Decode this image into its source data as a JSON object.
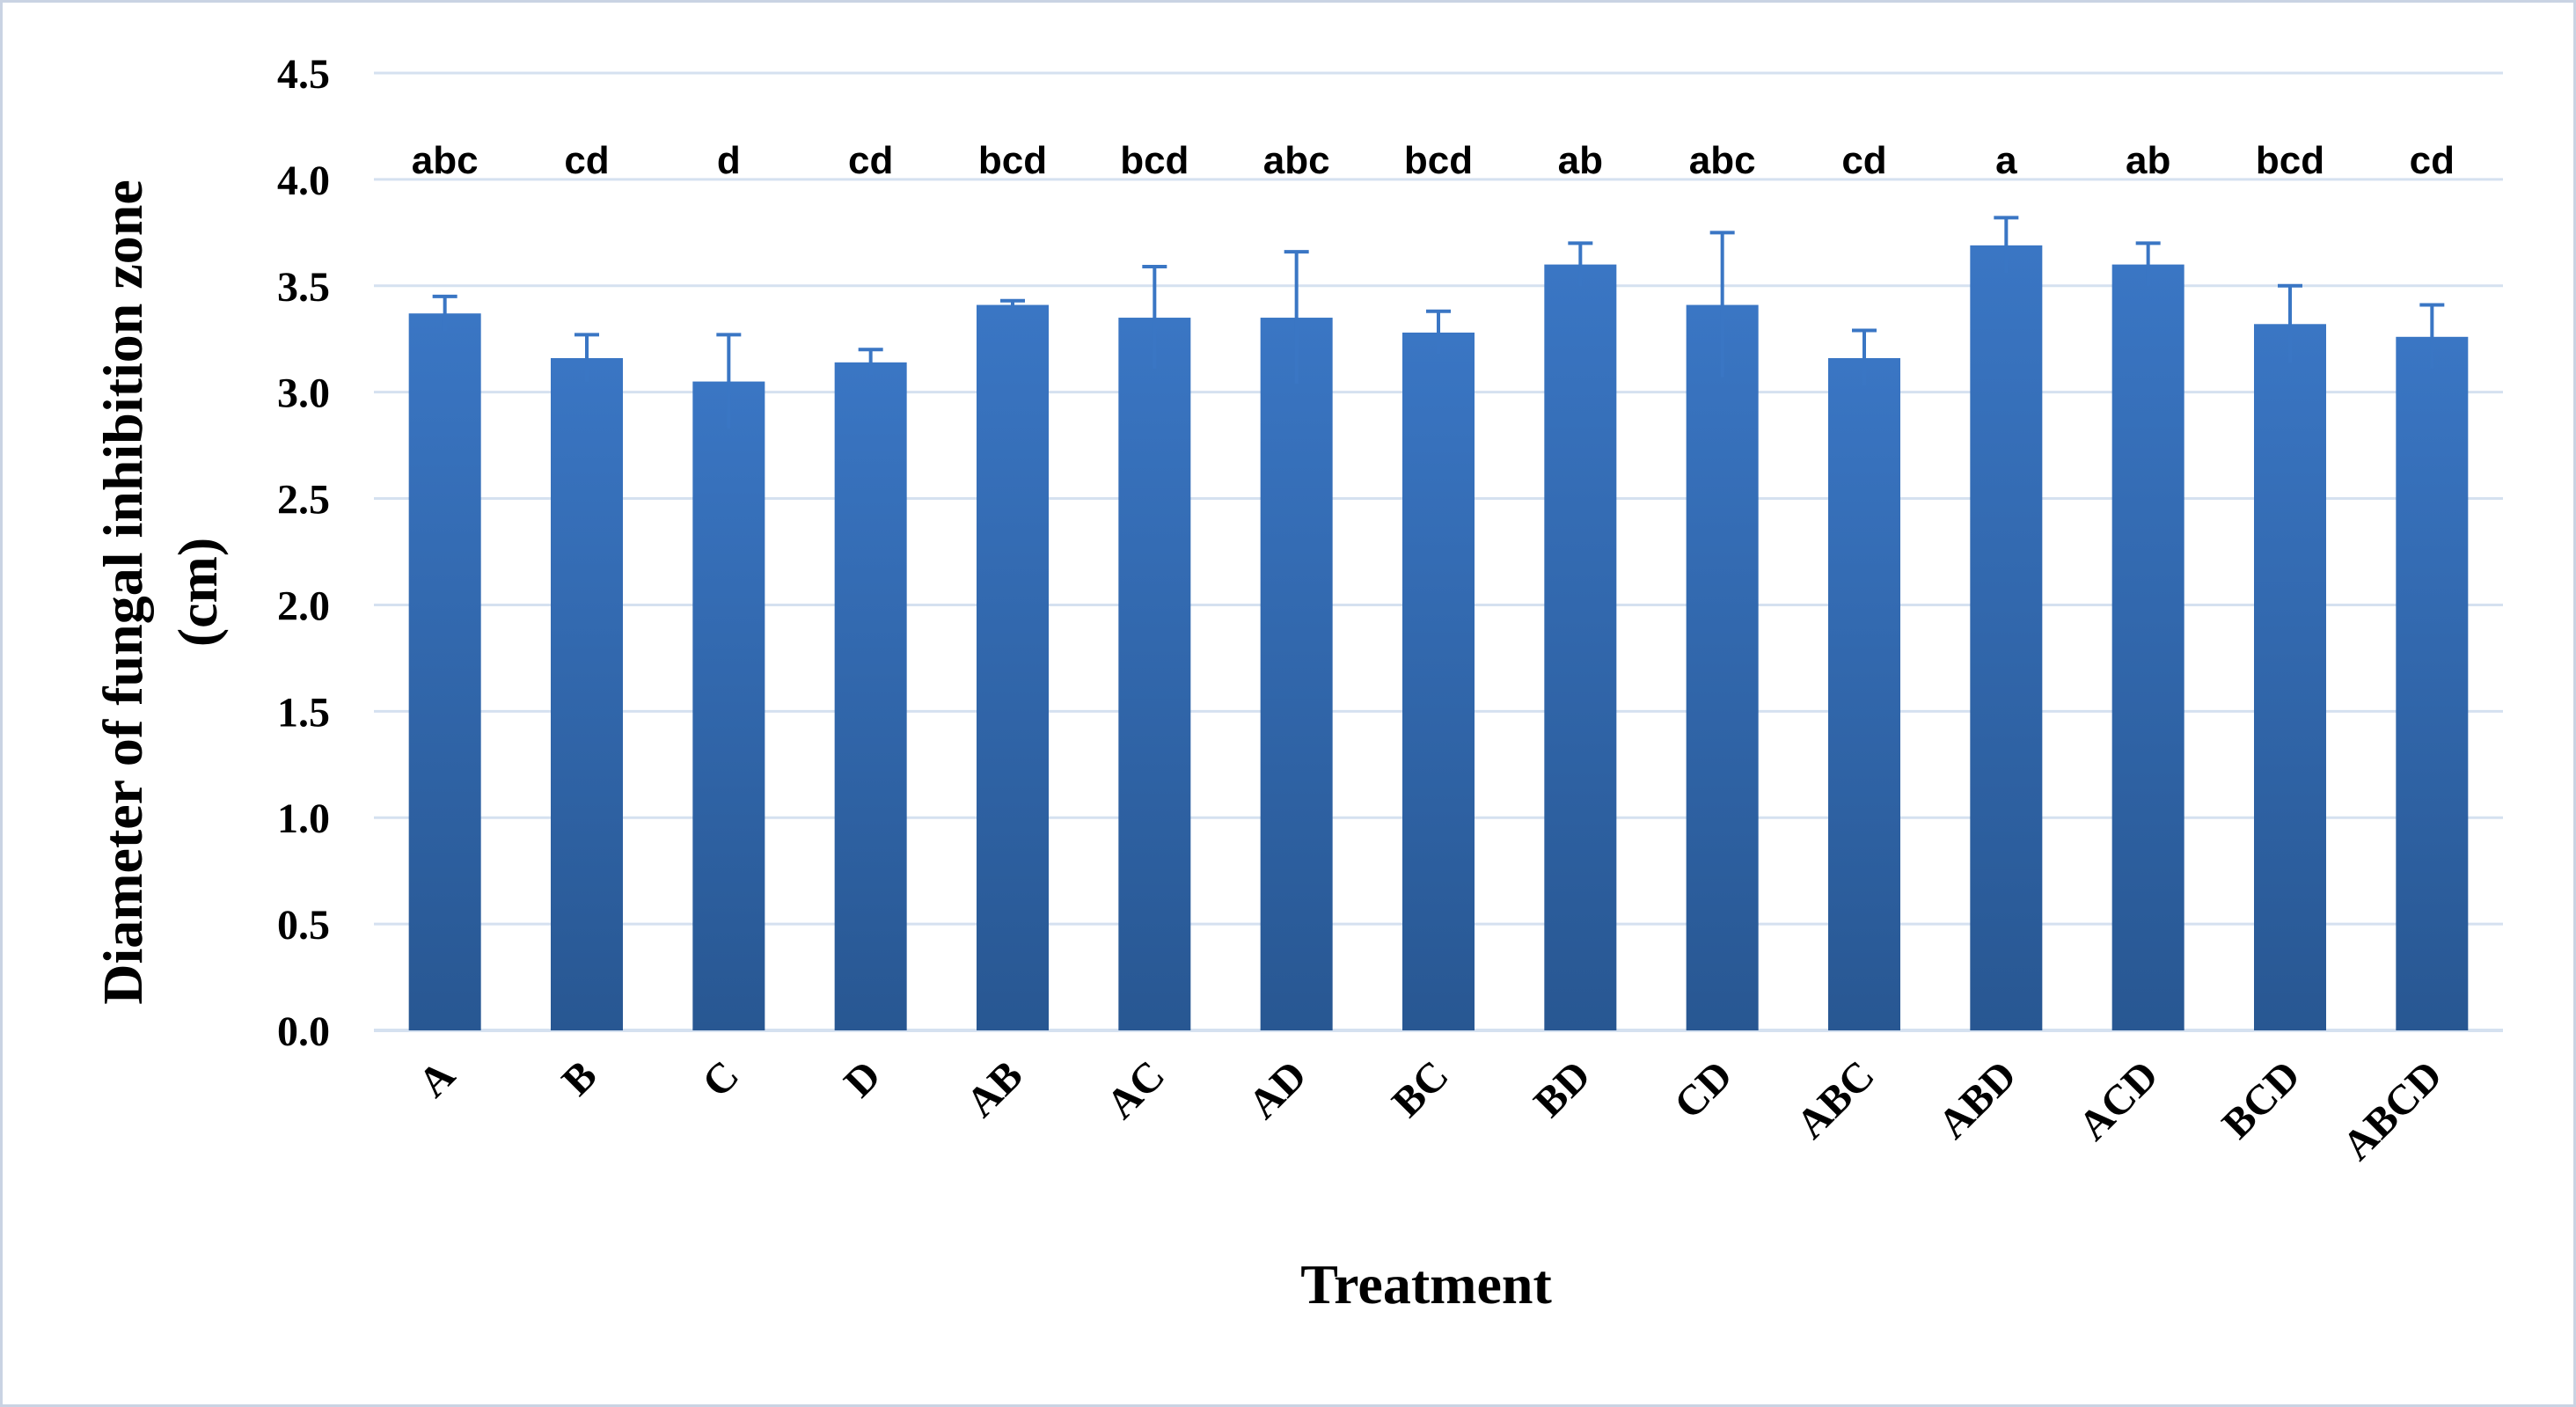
{
  "chart_data": {
    "type": "bar",
    "xlabel": "Treatment",
    "ylabel_line1": "Diameter of fungal inhibition zone",
    "ylabel_line2": "(cm)",
    "ylim": [
      0,
      4.5
    ],
    "y_ticks": [
      "0.0",
      "0.5",
      "1.0",
      "1.5",
      "2.0",
      "2.5",
      "3.0",
      "3.5",
      "4.0",
      "4.5"
    ],
    "grid": true,
    "legend": "none",
    "bar_color_top": "#3a76c4",
    "bar_color_bottom": "#285792",
    "error_color": "#3a76c4",
    "grid_color": "#d5e1f0",
    "categories": [
      "A",
      "B",
      "C",
      "D",
      "AB",
      "AC",
      "AD",
      "BC",
      "BD",
      "CD",
      "ABC",
      "ABD",
      "ACD",
      "BCD",
      "ABCD"
    ],
    "values": [
      3.37,
      3.16,
      3.05,
      3.14,
      3.41,
      3.35,
      3.35,
      3.28,
      3.6,
      3.41,
      3.16,
      3.69,
      3.6,
      3.32,
      3.26
    ],
    "errors": [
      0.08,
      0.11,
      0.22,
      0.06,
      0.02,
      0.24,
      0.31,
      0.1,
      0.1,
      0.34,
      0.13,
      0.13,
      0.1,
      0.18,
      0.15
    ],
    "significance_letters": [
      "abc",
      "cd",
      "d",
      "cd",
      "bcd",
      "bcd",
      "abc",
      "bcd",
      "ab",
      "abc",
      "cd",
      "a",
      "ab",
      "bcd",
      "cd"
    ]
  }
}
